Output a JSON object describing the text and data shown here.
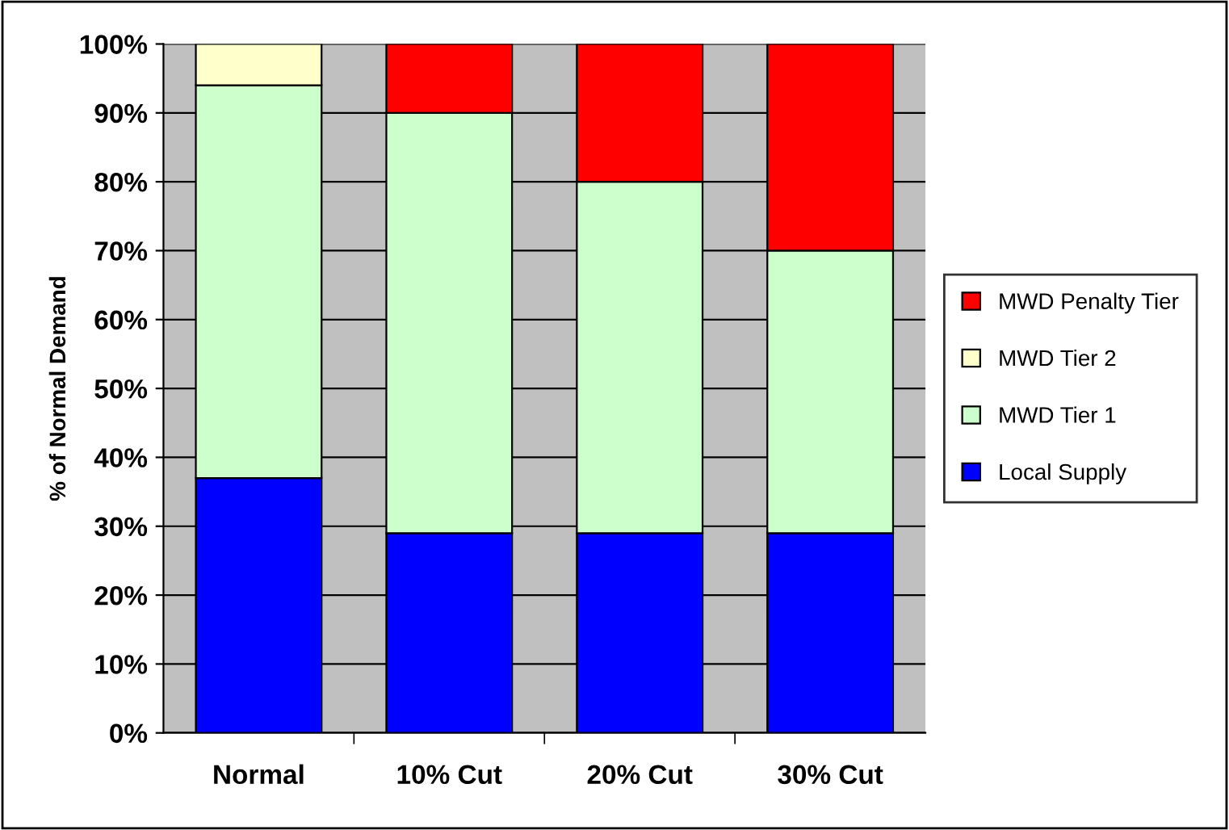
{
  "chart_data": {
    "type": "bar",
    "stacked": true,
    "ylabel": "% of Normal Demand",
    "categories": [
      "Normal",
      "10% Cut",
      "20% Cut",
      "30% Cut"
    ],
    "series": [
      {
        "name": "Local Supply",
        "color": "#0000ff",
        "values": [
          37,
          29,
          29,
          29
        ]
      },
      {
        "name": "MWD Tier 1",
        "color": "#ccffcc",
        "values": [
          57,
          61,
          51,
          41
        ]
      },
      {
        "name": "MWD Tier 2",
        "color": "#ffffcc",
        "values": [
          6,
          null,
          null,
          null
        ]
      },
      {
        "name": "MWD Penalty Tier",
        "color": "#ff0000",
        "values": [
          null,
          10,
          20,
          30
        ]
      }
    ],
    "ylim": [
      0,
      100
    ],
    "yticks": [
      {
        "value": 0,
        "label": "0%"
      },
      {
        "value": 10,
        "label": "10%"
      },
      {
        "value": 20,
        "label": "20%"
      },
      {
        "value": 30,
        "label": "30%"
      },
      {
        "value": 40,
        "label": "40%"
      },
      {
        "value": 50,
        "label": "50%"
      },
      {
        "value": 60,
        "label": "60%"
      },
      {
        "value": 70,
        "label": "70%"
      },
      {
        "value": 80,
        "label": "80%"
      },
      {
        "value": 90,
        "label": "90%"
      },
      {
        "value": 100,
        "label": "100%"
      }
    ],
    "grid": "y",
    "legend": "right"
  }
}
